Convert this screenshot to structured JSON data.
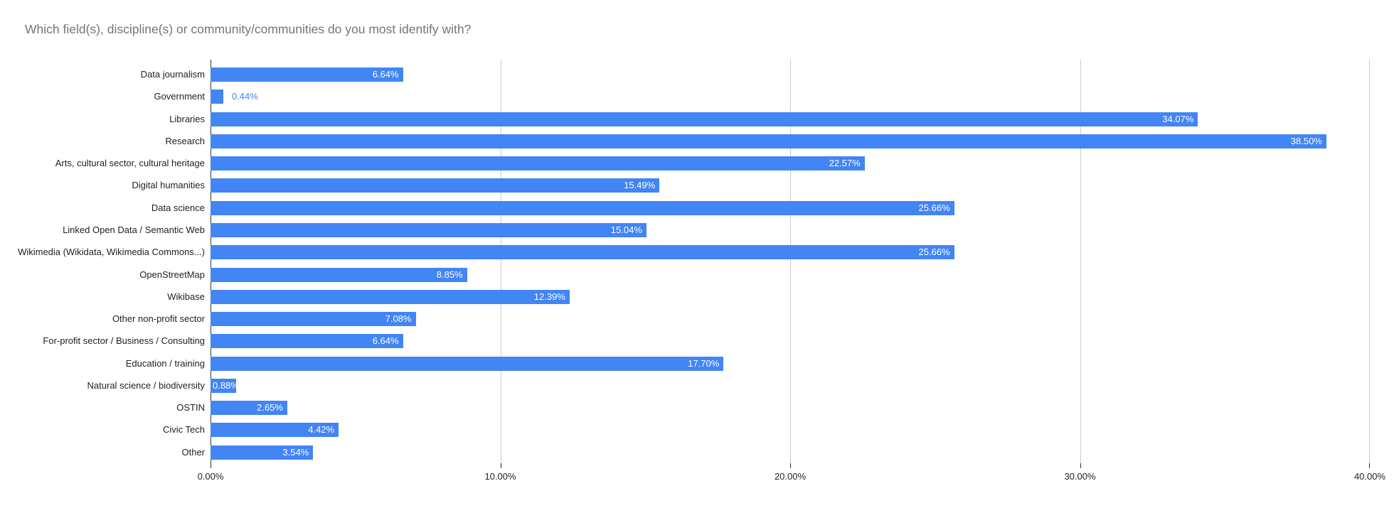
{
  "page": {
    "background": "#ffffff"
  },
  "chart_data": {
    "type": "bar",
    "orientation": "horizontal",
    "title": "Which field(s), discipline(s) or community/communities do you most identify with?",
    "categories": [
      "Data journalism",
      "Government",
      "Libraries",
      "Research",
      "Arts, cultural sector, cultural heritage",
      "Digital humanities",
      "Data science",
      "Linked Open Data / Semantic Web",
      "Wikimedia (Wikidata, Wikimedia Commons...)",
      "OpenStreetMap",
      "Wikibase",
      "Other non-profit sector",
      "For-profit sector / Business / Consulting",
      "Education / training",
      "Natural science / biodiversity",
      "OSTIN",
      "Civic Tech",
      "Other"
    ],
    "values": [
      6.64,
      0.44,
      34.07,
      38.5,
      22.57,
      15.49,
      25.66,
      15.04,
      25.66,
      8.85,
      12.39,
      7.08,
      6.64,
      17.7,
      0.88,
      2.65,
      4.42,
      3.54
    ],
    "value_labels": [
      "6.64%",
      "0.44%",
      "34.07%",
      "38.50%",
      "22.57%",
      "15.49%",
      "25.66%",
      "15.04%",
      "25.66%",
      "8.85%",
      "12.39%",
      "7.08%",
      "6.64%",
      "17.70%",
      "0.88%",
      "2.65%",
      "4.42%",
      "3.54%"
    ],
    "x_ticks": [
      {
        "value": 0,
        "label": "0.00%"
      },
      {
        "value": 10,
        "label": "10.00%"
      },
      {
        "value": 20,
        "label": "20.00%"
      },
      {
        "value": 30,
        "label": "30.00%"
      },
      {
        "value": 40,
        "label": "40.00%"
      }
    ],
    "xlim": [
      0,
      40
    ],
    "grid": true,
    "legend": "none",
    "colors": {
      "bar": "#4285f4",
      "annotation_inside": "#ffffff",
      "annotation_outside": "#4285f4",
      "title": "#757575",
      "axis_text": "#222222",
      "gridline": "#cccccc",
      "axis_line": "#333333",
      "tick": "#333333"
    }
  }
}
